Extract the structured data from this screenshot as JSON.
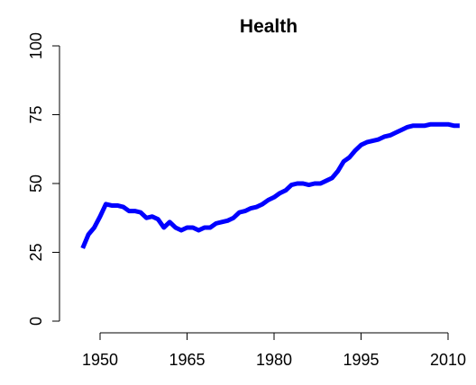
{
  "chart_data": {
    "type": "line",
    "title": "Health",
    "x": [
      1947,
      1948,
      1949,
      1950,
      1951,
      1952,
      1953,
      1954,
      1955,
      1956,
      1957,
      1958,
      1959,
      1960,
      1961,
      1962,
      1963,
      1964,
      1965,
      1966,
      1967,
      1968,
      1969,
      1970,
      1971,
      1972,
      1973,
      1974,
      1975,
      1976,
      1977,
      1978,
      1979,
      1980,
      1981,
      1982,
      1983,
      1984,
      1985,
      1986,
      1987,
      1988,
      1989,
      1990,
      1991,
      1992,
      1993,
      1994,
      1995,
      1996,
      1997,
      1998,
      1999,
      2000,
      2001,
      2002,
      2003,
      2004,
      2005,
      2006,
      2007,
      2008,
      2009,
      2010,
      2011,
      2012
    ],
    "series": [
      {
        "color": "#0000ff",
        "values": [
          26.5,
          31.5,
          34,
          38,
          42.5,
          42,
          42,
          41.5,
          40,
          40,
          39.5,
          37.5,
          38,
          37,
          34,
          36,
          34,
          33,
          34,
          34,
          33,
          34,
          34,
          35.5,
          36,
          36.5,
          37.5,
          39.5,
          40,
          41,
          41.5,
          42.5,
          44,
          45,
          46.5,
          47.5,
          49.5,
          50,
          50,
          49.5,
          50,
          50,
          51,
          52,
          54.5,
          58,
          59.5,
          62,
          64,
          65,
          65.5,
          66,
          67,
          67.5,
          68.5,
          69.5,
          70.5,
          71,
          71,
          71,
          71.5,
          71.5,
          71.5,
          71.5,
          71,
          71
        ]
      }
    ],
    "xlim": [
      1950,
      2010
    ],
    "xticks": [
      1950,
      1965,
      1980,
      1995,
      2010
    ],
    "ylim": [
      0,
      100
    ],
    "yticks": [
      0,
      25,
      50,
      75,
      100
    ]
  }
}
